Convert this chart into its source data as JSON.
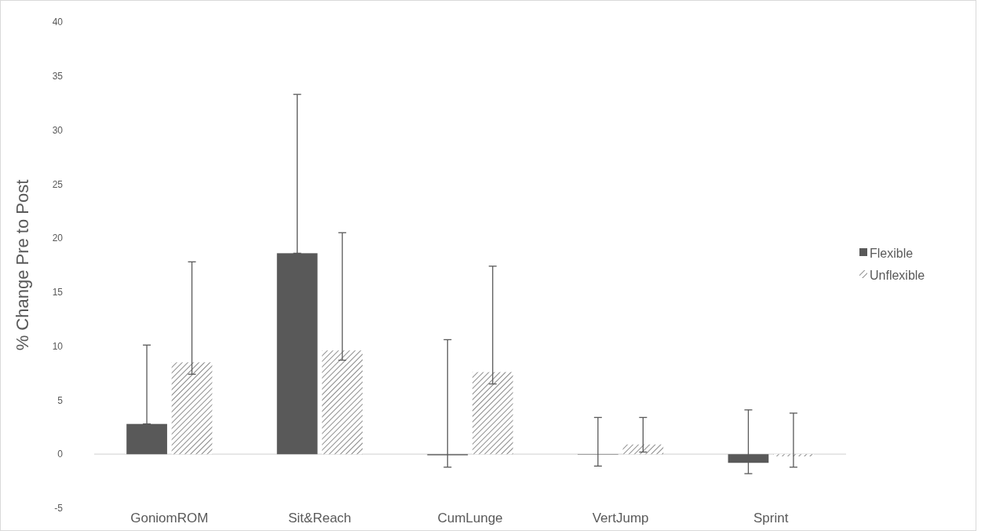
{
  "chart_data": {
    "type": "bar",
    "ylabel": "% Change  Pre to Post",
    "categories": [
      "GoniomROM",
      "Sit&Reach",
      "CumLunge",
      "VertJump",
      "Sprint"
    ],
    "series": [
      {
        "name": "Flexible",
        "color": "#595959",
        "values": [
          2.8,
          18.6,
          -0.1,
          0,
          -0.8
        ],
        "errors": [
          [
            2.8,
            10.1
          ],
          [
            18.6,
            33.3
          ],
          [
            -1.2,
            10.6
          ],
          [
            -1.1,
            3.4
          ],
          [
            -1.8,
            4.1
          ]
        ]
      },
      {
        "name": "Unflexible",
        "color": "#595959",
        "values": [
          8.5,
          9.6,
          7.6,
          0.9,
          -0.2
        ],
        "errors": [
          [
            7.4,
            17.8
          ],
          [
            8.7,
            20.5
          ],
          [
            6.5,
            17.4
          ],
          [
            0.2,
            3.4
          ],
          [
            -1.2,
            3.8
          ]
        ]
      }
    ],
    "ylim": [
      -5,
      40
    ],
    "yticks": [
      -5,
      0,
      5,
      10,
      15,
      20,
      25,
      30,
      35,
      40
    ],
    "legend": "right"
  }
}
